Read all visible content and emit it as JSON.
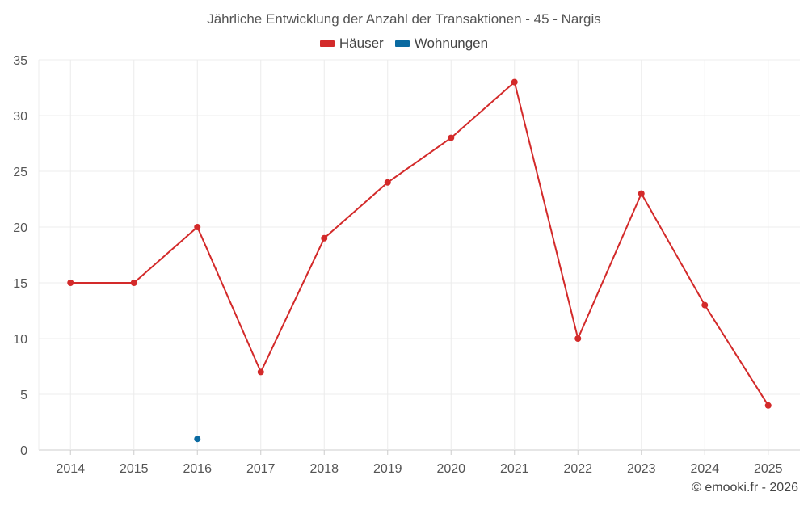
{
  "chart_data": {
    "type": "line",
    "title": "Jährliche Entwicklung der Anzahl der Transaktionen - 45 - Nargis",
    "categories": [
      "2014",
      "2015",
      "2016",
      "2017",
      "2018",
      "2019",
      "2020",
      "2021",
      "2022",
      "2023",
      "2024",
      "2025"
    ],
    "ylim": [
      0,
      35
    ],
    "yticks": [
      0,
      5,
      10,
      15,
      20,
      25,
      30,
      35
    ],
    "grid": true,
    "legend_position": "top-center",
    "series": [
      {
        "name": "Häuser",
        "color": "#d32a2a",
        "values": [
          15,
          15,
          20,
          7,
          19,
          24,
          28,
          33,
          10,
          23,
          13,
          4
        ]
      },
      {
        "name": "Wohnungen",
        "color": "#0a6aa1",
        "values": [
          null,
          null,
          1,
          null,
          null,
          null,
          null,
          null,
          null,
          null,
          null,
          null
        ]
      }
    ]
  },
  "footer": {
    "copyright": "© emooki.fr - 2026"
  }
}
